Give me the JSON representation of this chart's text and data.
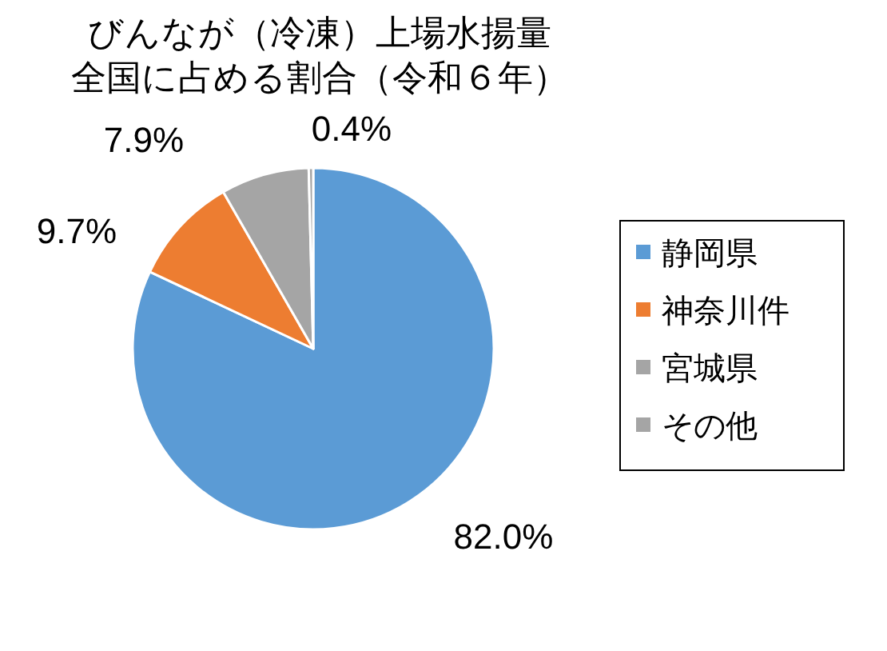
{
  "chart_data": {
    "type": "pie",
    "title": "びんなが（冷凍）上場水揚量",
    "subtitle": "全国に占める割合（令和６年）",
    "categories": [
      "静岡県",
      "神奈川件",
      "宮城県",
      "その他"
    ],
    "values": [
      82.0,
      9.7,
      7.9,
      0.4
    ],
    "value_labels": [
      "82.0%",
      "9.7%",
      "7.9%",
      "0.4%"
    ],
    "colors": [
      "#5b9bd5",
      "#ed7d31",
      "#a5a5a5",
      "#a5a5a5"
    ],
    "legend": "right"
  }
}
